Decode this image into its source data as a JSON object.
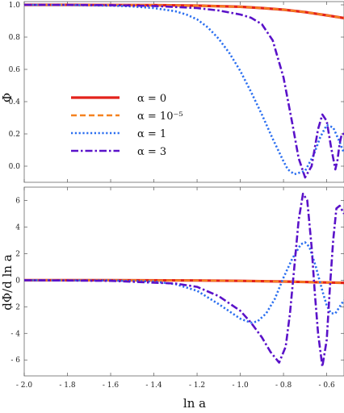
{
  "chart_data": [
    {
      "type": "line",
      "panel": "top",
      "xlabel": "",
      "ylabel": "Φ",
      "xlim": [
        -2.0,
        -0.52
      ],
      "ylim": [
        -0.1,
        1.02
      ],
      "x_ticks": [
        -2.0,
        -1.8,
        -1.6,
        -1.4,
        -1.2,
        -1.0,
        -0.8,
        -0.6
      ],
      "y_ticks": [
        0.0,
        0.2,
        0.4,
        0.6,
        0.8,
        1.0
      ],
      "y_tick_labels": [
        "0.0",
        "0.2",
        "0.4",
        "0.6",
        "0.8",
        "1.0"
      ],
      "grid": false,
      "legend_position": "middle-left",
      "series": [
        {
          "name": "α = 0",
          "color": "#e3221b",
          "dash": "solid",
          "x": [
            -2.0,
            -1.8,
            -1.6,
            -1.4,
            -1.2,
            -1.0,
            -0.9,
            -0.8,
            -0.7,
            -0.6,
            -0.52
          ],
          "y": [
            1.0,
            1.0,
            0.999,
            0.998,
            0.995,
            0.988,
            0.98,
            0.97,
            0.955,
            0.935,
            0.918
          ]
        },
        {
          "name": "α = 10⁻⁵",
          "color": "#f58220",
          "dash": "dashed",
          "x": [
            -2.0,
            -1.8,
            -1.6,
            -1.4,
            -1.2,
            -1.0,
            -0.9,
            -0.8,
            -0.7,
            -0.6,
            -0.52
          ],
          "y": [
            1.0,
            1.0,
            0.999,
            0.998,
            0.995,
            0.988,
            0.98,
            0.97,
            0.955,
            0.935,
            0.918
          ]
        },
        {
          "name": "α = 1",
          "color": "#2b6ff0",
          "dash": "dotted",
          "x": [
            -2.0,
            -1.8,
            -1.6,
            -1.5,
            -1.4,
            -1.3,
            -1.25,
            -1.2,
            -1.15,
            -1.1,
            -1.05,
            -1.0,
            -0.95,
            -0.9,
            -0.85,
            -0.8,
            -0.78,
            -0.75,
            -0.7,
            -0.66,
            -0.63,
            -0.6,
            -0.57,
            -0.54,
            -0.52
          ],
          "y": [
            1.0,
            0.999,
            0.995,
            0.99,
            0.98,
            0.96,
            0.94,
            0.91,
            0.86,
            0.79,
            0.7,
            0.59,
            0.46,
            0.32,
            0.17,
            0.03,
            -0.02,
            -0.05,
            -0.03,
            0.07,
            0.18,
            0.255,
            0.24,
            0.15,
            0.08
          ]
        },
        {
          "name": "α = 3",
          "color": "#5a12c9",
          "dash": "dashdot",
          "x": [
            -2.0,
            -1.8,
            -1.6,
            -1.4,
            -1.2,
            -1.1,
            -1.0,
            -0.95,
            -0.9,
            -0.85,
            -0.8,
            -0.76,
            -0.73,
            -0.7,
            -0.67,
            -0.64,
            -0.62,
            -0.6,
            -0.58,
            -0.56,
            -0.55,
            -0.54,
            -0.53,
            -0.52
          ],
          "y": [
            1.0,
            1.0,
            0.998,
            0.993,
            0.98,
            0.965,
            0.94,
            0.92,
            0.88,
            0.78,
            0.55,
            0.27,
            0.05,
            -0.07,
            0.0,
            0.23,
            0.32,
            0.28,
            0.12,
            -0.02,
            0.04,
            0.14,
            0.2,
            0.2
          ]
        }
      ]
    },
    {
      "type": "line",
      "panel": "bottom",
      "xlabel": "ln a",
      "ylabel": "dΦ/d ln a",
      "xlim": [
        -2.0,
        -0.52
      ],
      "ylim": [
        -7.2,
        7.0
      ],
      "x_ticks": [
        -2.0,
        -1.8,
        -1.6,
        -1.4,
        -1.2,
        -1.0,
        -0.8,
        -0.6
      ],
      "x_tick_labels": [
        "- 2.0",
        "- 1.8",
        "- 1.6",
        "- 1.4",
        "- 1.2",
        "- 1.0",
        "- 0.8",
        "- 0.6"
      ],
      "y_ticks": [
        -6,
        -4,
        -2,
        0,
        2,
        4,
        6
      ],
      "y_tick_labels": [
        "- 6",
        "- 4",
        "- 2",
        "0",
        "2",
        "4",
        "6"
      ],
      "grid": false,
      "series": [
        {
          "name": "α = 0",
          "color": "#e3221b",
          "dash": "solid",
          "x": [
            -2.0,
            -1.6,
            -1.2,
            -1.0,
            -0.8,
            -0.6,
            -0.52
          ],
          "y": [
            0.0,
            0.0,
            -0.02,
            -0.05,
            -0.1,
            -0.17,
            -0.2
          ]
        },
        {
          "name": "α = 10⁻⁵",
          "color": "#f58220",
          "dash": "dashed",
          "x": [
            -2.0,
            -1.6,
            -1.2,
            -1.0,
            -0.8,
            -0.6,
            -0.52
          ],
          "y": [
            0.0,
            0.0,
            -0.02,
            -0.05,
            -0.1,
            -0.17,
            -0.2
          ]
        },
        {
          "name": "α = 1",
          "color": "#2b6ff0",
          "dash": "dotted",
          "x": [
            -2.0,
            -1.6,
            -1.4,
            -1.3,
            -1.2,
            -1.1,
            -1.0,
            -0.95,
            -0.92,
            -0.88,
            -0.84,
            -0.8,
            -0.76,
            -0.72,
            -0.7,
            -0.68,
            -0.65,
            -0.62,
            -0.6,
            -0.58,
            -0.56,
            -0.54,
            -0.52
          ],
          "y": [
            0.0,
            -0.02,
            -0.1,
            -0.3,
            -0.8,
            -1.8,
            -2.9,
            -3.2,
            -3.1,
            -2.5,
            -1.4,
            0.2,
            1.6,
            2.7,
            2.85,
            2.5,
            1.0,
            -0.8,
            -1.9,
            -2.5,
            -2.5,
            -2.0,
            -1.5
          ]
        },
        {
          "name": "α = 3",
          "color": "#5a12c9",
          "dash": "dashdot",
          "x": [
            -2.0,
            -1.6,
            -1.3,
            -1.2,
            -1.1,
            -1.0,
            -0.95,
            -0.9,
            -0.86,
            -0.82,
            -0.79,
            -0.77,
            -0.75,
            -0.73,
            -0.71,
            -0.69,
            -0.67,
            -0.655,
            -0.64,
            -0.62,
            -0.6,
            -0.585,
            -0.57,
            -0.555,
            -0.54,
            -0.53,
            -0.52
          ],
          "y": [
            0.0,
            -0.05,
            -0.25,
            -0.5,
            -1.2,
            -2.3,
            -3.2,
            -4.3,
            -5.4,
            -6.2,
            -5.0,
            -2.5,
            1.0,
            4.5,
            6.5,
            6.0,
            2.5,
            -1.0,
            -4.0,
            -6.5,
            -4.5,
            -0.5,
            3.0,
            5.4,
            5.6,
            5.3,
            5.0
          ]
        }
      ]
    }
  ]
}
